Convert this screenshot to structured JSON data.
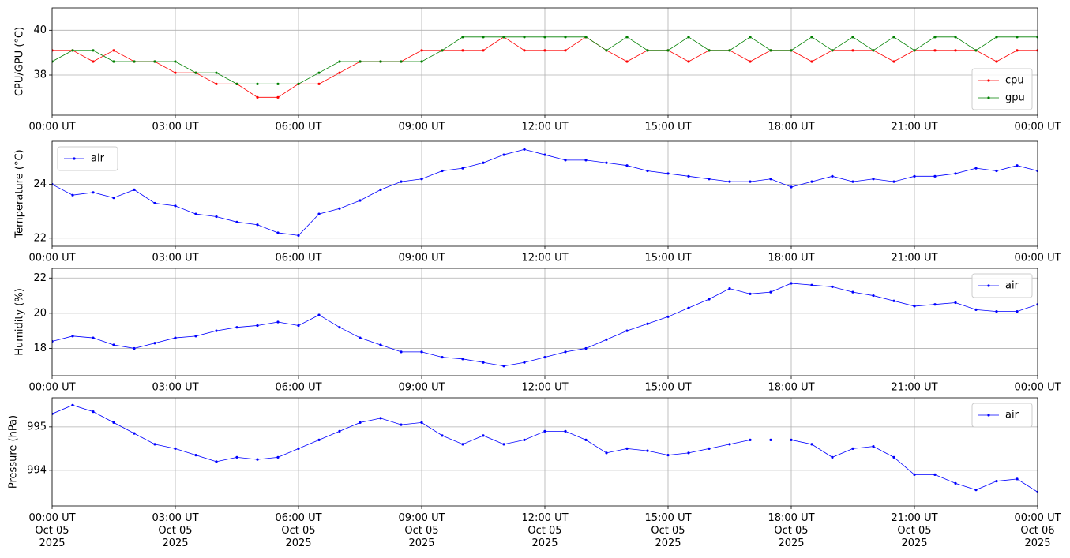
{
  "chart_data": [
    {
      "type": "line",
      "ylabel": "CPU/GPU (°C)",
      "grid": true,
      "legend": "lower right",
      "xlim": [
        0,
        24
      ],
      "ylim": [
        36.2,
        41.0
      ],
      "yticks": [
        38,
        40
      ],
      "xticks": [
        {
          "value": 0,
          "label": "00:00 UT"
        },
        {
          "value": 3,
          "label": "03:00 UT"
        },
        {
          "value": 6,
          "label": "06:00 UT"
        },
        {
          "value": 9,
          "label": "09:00 UT"
        },
        {
          "value": 12,
          "label": "12:00 UT"
        },
        {
          "value": 15,
          "label": "15:00 UT"
        },
        {
          "value": 18,
          "label": "18:00 UT"
        },
        {
          "value": 21,
          "label": "21:00 UT"
        },
        {
          "value": 24,
          "label": "00:00 UT"
        }
      ],
      "x": [
        0,
        0.5,
        1,
        1.5,
        2,
        2.5,
        3,
        3.5,
        4,
        4.5,
        5,
        5.5,
        6,
        6.5,
        7,
        7.5,
        8,
        8.5,
        9,
        9.5,
        10,
        10.5,
        11,
        11.5,
        12,
        12.5,
        13,
        13.5,
        14,
        14.5,
        15,
        15.5,
        16,
        16.5,
        17,
        17.5,
        18,
        18.5,
        19,
        19.5,
        20,
        20.5,
        21,
        21.5,
        22,
        22.5,
        23,
        23.5,
        24
      ],
      "series": [
        {
          "name": "cpu",
          "color": "#ff0000",
          "values": [
            39.1,
            39.1,
            38.6,
            39.1,
            38.6,
            38.6,
            38.1,
            38.1,
            37.6,
            37.6,
            37.0,
            37.0,
            37.6,
            37.6,
            38.1,
            38.6,
            38.6,
            38.6,
            39.1,
            39.1,
            39.1,
            39.1,
            39.7,
            39.1,
            39.1,
            39.1,
            39.7,
            39.1,
            38.6,
            39.1,
            39.1,
            38.6,
            39.1,
            39.1,
            38.6,
            39.1,
            39.1,
            38.6,
            39.1,
            39.1,
            39.1,
            38.6,
            39.1,
            39.1,
            39.1,
            39.1,
            38.6,
            39.1,
            39.1
          ]
        },
        {
          "name": "gpu",
          "color": "#008000",
          "values": [
            38.6,
            39.1,
            39.1,
            38.6,
            38.6,
            38.6,
            38.6,
            38.1,
            38.1,
            37.6,
            37.6,
            37.6,
            37.6,
            38.1,
            38.6,
            38.6,
            38.6,
            38.6,
            38.6,
            39.1,
            39.7,
            39.7,
            39.7,
            39.7,
            39.7,
            39.7,
            39.7,
            39.1,
            39.7,
            39.1,
            39.1,
            39.7,
            39.1,
            39.1,
            39.7,
            39.1,
            39.1,
            39.7,
            39.1,
            39.7,
            39.1,
            39.7,
            39.1,
            39.7,
            39.7,
            39.1,
            39.7,
            39.7,
            39.7
          ]
        }
      ]
    },
    {
      "type": "line",
      "ylabel": "Temperature (°C)",
      "grid": true,
      "legend": "upper left",
      "xlim": [
        0,
        24
      ],
      "ylim": [
        21.7,
        25.6
      ],
      "yticks": [
        22,
        24
      ],
      "xticks": [
        {
          "value": 0,
          "label": "00:00 UT"
        },
        {
          "value": 3,
          "label": "03:00 UT"
        },
        {
          "value": 6,
          "label": "06:00 UT"
        },
        {
          "value": 9,
          "label": "09:00 UT"
        },
        {
          "value": 12,
          "label": "12:00 UT"
        },
        {
          "value": 15,
          "label": "15:00 UT"
        },
        {
          "value": 18,
          "label": "18:00 UT"
        },
        {
          "value": 21,
          "label": "21:00 UT"
        },
        {
          "value": 24,
          "label": "00:00 UT"
        }
      ],
      "x": [
        0,
        0.5,
        1,
        1.5,
        2,
        2.5,
        3,
        3.5,
        4,
        4.5,
        5,
        5.5,
        6,
        6.5,
        7,
        7.5,
        8,
        8.5,
        9,
        9.5,
        10,
        10.5,
        11,
        11.5,
        12,
        12.5,
        13,
        13.5,
        14,
        14.5,
        15,
        15.5,
        16,
        16.5,
        17,
        17.5,
        18,
        18.5,
        19,
        19.5,
        20,
        20.5,
        21,
        21.5,
        22,
        22.5,
        23,
        23.5,
        24
      ],
      "series": [
        {
          "name": "air",
          "color": "#0000ff",
          "values": [
            24.0,
            23.6,
            23.7,
            23.5,
            23.8,
            23.3,
            23.2,
            22.9,
            22.8,
            22.6,
            22.5,
            22.2,
            22.1,
            22.9,
            23.1,
            23.4,
            23.8,
            24.1,
            24.2,
            24.5,
            24.6,
            24.8,
            25.1,
            25.3,
            25.1,
            24.9,
            24.9,
            24.8,
            24.7,
            24.5,
            24.4,
            24.3,
            24.2,
            24.1,
            24.1,
            24.2,
            23.9,
            24.1,
            24.3,
            24.1,
            24.2,
            24.1,
            24.3,
            24.3,
            24.4,
            24.6,
            24.5,
            24.7,
            24.5
          ]
        }
      ]
    },
    {
      "type": "line",
      "ylabel": "Humidity (%)",
      "grid": true,
      "legend": "upper right",
      "xlim": [
        0,
        24
      ],
      "ylim": [
        16.45,
        22.55
      ],
      "yticks": [
        18,
        20,
        22
      ],
      "xticks": [
        {
          "value": 0,
          "label": "00:00 UT"
        },
        {
          "value": 3,
          "label": "03:00 UT"
        },
        {
          "value": 6,
          "label": "06:00 UT"
        },
        {
          "value": 9,
          "label": "09:00 UT"
        },
        {
          "value": 12,
          "label": "12:00 UT"
        },
        {
          "value": 15,
          "label": "15:00 UT"
        },
        {
          "value": 18,
          "label": "18:00 UT"
        },
        {
          "value": 21,
          "label": "21:00 UT"
        },
        {
          "value": 24,
          "label": "00:00 UT"
        }
      ],
      "x": [
        0,
        0.5,
        1,
        1.5,
        2,
        2.5,
        3,
        3.5,
        4,
        4.5,
        5,
        5.5,
        6,
        6.5,
        7,
        7.5,
        8,
        8.5,
        9,
        9.5,
        10,
        10.5,
        11,
        11.5,
        12,
        12.5,
        13,
        13.5,
        14,
        14.5,
        15,
        15.5,
        16,
        16.5,
        17,
        17.5,
        18,
        18.5,
        19,
        19.5,
        20,
        20.5,
        21,
        21.5,
        22,
        22.5,
        23,
        23.5,
        24
      ],
      "series": [
        {
          "name": "air",
          "color": "#0000ff",
          "values": [
            18.4,
            18.7,
            18.6,
            18.2,
            18.0,
            18.3,
            18.6,
            18.7,
            19.0,
            19.2,
            19.3,
            19.5,
            19.3,
            19.9,
            19.2,
            18.6,
            18.2,
            17.8,
            17.8,
            17.5,
            17.4,
            17.2,
            17.0,
            17.2,
            17.5,
            17.8,
            18.0,
            18.5,
            19.0,
            19.4,
            19.8,
            20.3,
            20.8,
            21.4,
            21.1,
            21.2,
            21.7,
            21.6,
            21.5,
            21.2,
            21.0,
            20.7,
            20.4,
            20.5,
            20.6,
            20.2,
            20.1,
            20.1,
            20.5
          ]
        }
      ]
    },
    {
      "type": "line",
      "ylabel": "Pressure (hPa)",
      "grid": true,
      "legend": "upper right",
      "xlim": [
        0,
        24
      ],
      "ylim": [
        993.18,
        995.67
      ],
      "yticks": [
        994,
        995
      ],
      "xticks": [
        {
          "value": 0,
          "label": "00:00 UT\nOct 05\n2025"
        },
        {
          "value": 3,
          "label": "03:00 UT\nOct 05\n2025"
        },
        {
          "value": 6,
          "label": "06:00 UT\nOct 05\n2025"
        },
        {
          "value": 9,
          "label": "09:00 UT\nOct 05\n2025"
        },
        {
          "value": 12,
          "label": "12:00 UT\nOct 05\n2025"
        },
        {
          "value": 15,
          "label": "15:00 UT\nOct 05\n2025"
        },
        {
          "value": 18,
          "label": "18:00 UT\nOct 05\n2025"
        },
        {
          "value": 21,
          "label": "21:00 UT\nOct 05\n2025"
        },
        {
          "value": 24,
          "label": "00:00 UT\nOct 06\n2025"
        }
      ],
      "x": [
        0,
        0.5,
        1,
        1.5,
        2,
        2.5,
        3,
        3.5,
        4,
        4.5,
        5,
        5.5,
        6,
        6.5,
        7,
        7.5,
        8,
        8.5,
        9,
        9.5,
        10,
        10.5,
        11,
        11.5,
        12,
        12.5,
        13,
        13.5,
        14,
        14.5,
        15,
        15.5,
        16,
        16.5,
        17,
        17.5,
        18,
        18.5,
        19,
        19.5,
        20,
        20.5,
        21,
        21.5,
        22,
        22.5,
        23,
        23.5,
        24
      ],
      "series": [
        {
          "name": "air",
          "color": "#0000ff",
          "values": [
            995.3,
            995.5,
            995.35,
            995.1,
            994.85,
            994.6,
            994.5,
            994.35,
            994.2,
            994.3,
            994.25,
            994.3,
            994.5,
            994.7,
            994.9,
            995.1,
            995.2,
            995.05,
            995.1,
            994.8,
            994.6,
            994.8,
            994.6,
            994.7,
            994.9,
            994.9,
            994.7,
            994.4,
            994.5,
            994.45,
            994.35,
            994.4,
            994.5,
            994.6,
            994.7,
            994.7,
            994.7,
            994.6,
            994.3,
            994.5,
            994.55,
            994.3,
            993.9,
            993.9,
            993.7,
            993.55,
            993.75,
            993.8,
            993.5
          ]
        }
      ]
    }
  ]
}
